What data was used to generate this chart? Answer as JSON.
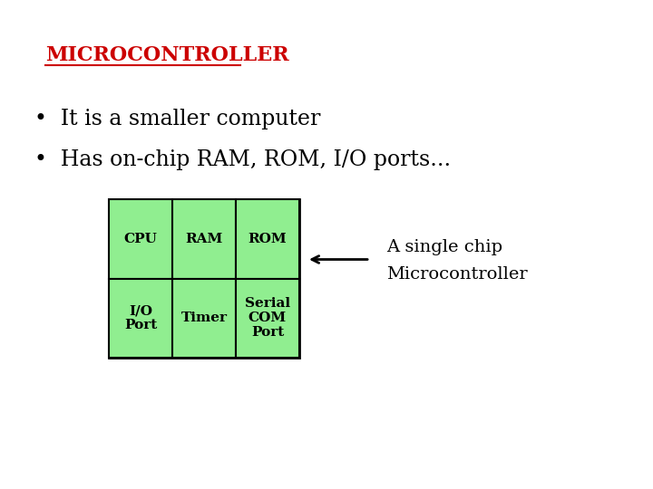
{
  "title": "MICROCONTROLLER",
  "title_color": "#cc0000",
  "bg_color": "#ffffff",
  "bullet1": "•  It is a smaller computer",
  "bullet2": "•  Has on-chip RAM, ROM, I/O ports...",
  "bullet_fontsize": 17,
  "title_fontsize": 16,
  "cell_labels": [
    [
      "CPU",
      "RAM",
      "ROM"
    ],
    [
      "I/O\nPort",
      "Timer",
      "Serial\nCOM\nPort"
    ]
  ],
  "cell_color": "#90ee90",
  "outer_box_color": "#000000",
  "arrow_label1": "A single chip",
  "arrow_label2": "Microcontroller",
  "label_fontsize": 14,
  "cell_fontsize": 11
}
